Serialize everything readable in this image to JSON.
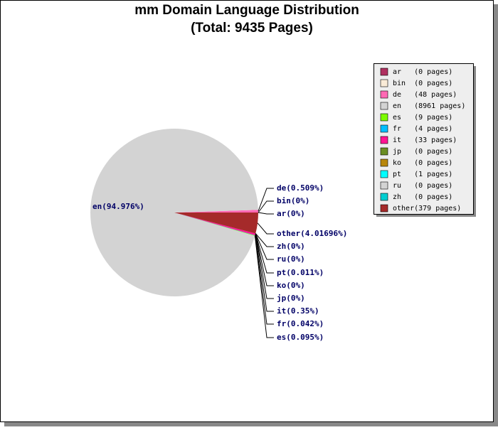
{
  "chart_data": {
    "type": "pie",
    "title": "mm Domain Language Distribution",
    "subtitle": "(Total: 9435 Pages)",
    "categories": [
      "ar",
      "bin",
      "de",
      "en",
      "es",
      "fr",
      "it",
      "jp",
      "ko",
      "pt",
      "ru",
      "zh",
      "other"
    ],
    "values": [
      0,
      0,
      0.509,
      94.976,
      0.095,
      0.042,
      0.35,
      0,
      0,
      0.011,
      0,
      0,
      4.01696
    ],
    "value_labels": [
      "ar(0%)",
      "bin(0%)",
      "de(0.509%)",
      "en(94.976%)",
      "es(0.095%)",
      "fr(0.042%)",
      "it(0.35%)",
      "jp(0%)",
      "ko(0%)",
      "pt(0.011%)",
      "ru(0%)",
      "zh(0%)",
      "other(4.01696%)"
    ],
    "legend_labels": [
      "ar   (0 pages)",
      "bin  (0 pages)",
      "de   (48 pages)",
      "en   (8961 pages)",
      "es   (9 pages)",
      "fr   (4 pages)",
      "it   (33 pages)",
      "jp   (0 pages)",
      "ko   (0 pages)",
      "pt   (1 pages)",
      "ru   (0 pages)",
      "zh   (0 pages)",
      "other(379 pages)"
    ],
    "colors": [
      "#b03060",
      "#faebd7",
      "#ff69b4",
      "#d3d3d3",
      "#7cfc00",
      "#00bfff",
      "#ff1493",
      "#6b8e23",
      "#b8860b",
      "#00ffff",
      "#d3d3d3",
      "#00ced1",
      "#a52a2a"
    ]
  }
}
